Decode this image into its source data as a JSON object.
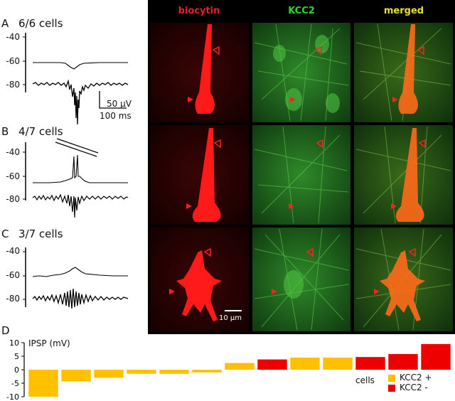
{
  "panels": {
    "a": {
      "letter": "A",
      "title": "6/6 cells"
    },
    "b": {
      "letter": "B",
      "title": "4/7 cells"
    },
    "c": {
      "letter": "C",
      "title": "3/7 cells"
    },
    "d": {
      "letter": "D"
    }
  },
  "trace_yticks": [
    "-40",
    "-60",
    "-80"
  ],
  "scalebar": {
    "voltage": "50 µV",
    "time": "100 ms"
  },
  "micro": {
    "columns": [
      "biocytin",
      "KCC2",
      "merged"
    ],
    "column_colors": [
      "#e32222",
      "#22dd22",
      "#e8e030"
    ],
    "scalebar_label": "10 µm"
  },
  "colors": {
    "kcc2_plus": "#ffc000",
    "kcc2_minus": "#ee0000"
  },
  "chart_data": {
    "type": "bar",
    "ylabel": "IPSP (mV)",
    "xlabel": "cells",
    "ylim": [
      -10,
      10
    ],
    "yticks": [
      "10",
      "5",
      "0",
      "-5",
      "-10"
    ],
    "values": [
      -10,
      -4.3,
      -3.0,
      -1.5,
      -1.5,
      -1.0,
      2.5,
      3.8,
      4.5,
      4.5,
      4.7,
      5.8,
      9.5
    ],
    "groups": [
      "KCC2 +",
      "KCC2 +",
      "KCC2 +",
      "KCC2 +",
      "KCC2 +",
      "KCC2 +",
      "KCC2 +",
      "KCC2 -",
      "KCC2 +",
      "KCC2 +",
      "KCC2 -",
      "KCC2 -",
      "KCC2 -"
    ],
    "legend": [
      {
        "label": "KCC2 +",
        "color": "#ffc000"
      },
      {
        "label": "KCC2 -",
        "color": "#ee0000"
      }
    ],
    "legend_position": "bottom-right"
  }
}
